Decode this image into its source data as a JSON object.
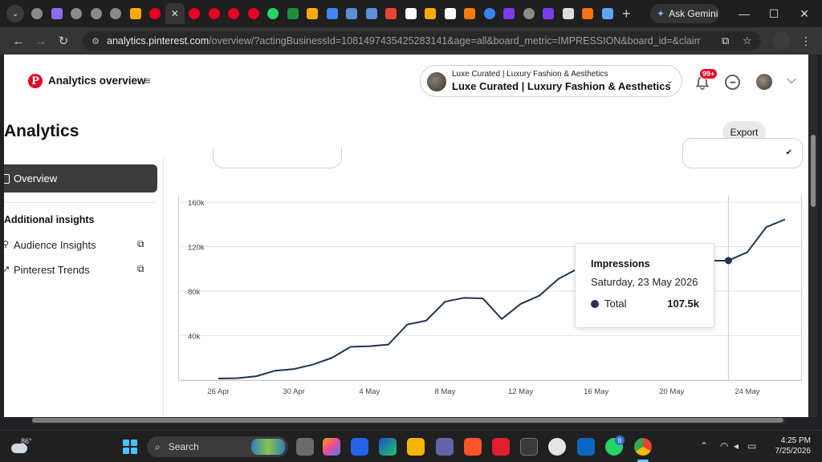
{
  "browser": {
    "gemini_label": "Ask Gemini",
    "new_tab_symbol": "+",
    "close_tab_symbol": "✕",
    "url_host": "analytics.pinterest.com",
    "url_path": "/overview/?actingBusinessId=1081497435425283141&age=all&board_metric=IMPRESSION&board_id=&claimed_account_type...",
    "tabs": [
      {
        "icon": "globe-icon",
        "color": "#8a8a8a"
      },
      {
        "icon": "chart-icon",
        "color": "#8e6cf0"
      },
      {
        "icon": "globe-icon",
        "color": "#8a8a8a"
      },
      {
        "icon": "globe-icon",
        "color": "#8a8a8a"
      },
      {
        "icon": "globe-icon",
        "color": "#8a8a8a"
      },
      {
        "icon": "analytics-icon",
        "color": "#f9ab00"
      },
      {
        "icon": "pinterest-icon",
        "color": "#e60023"
      },
      {
        "icon": "close-icon",
        "color": "#353535",
        "active": true
      },
      {
        "icon": "pinterest-icon",
        "color": "#e60023"
      },
      {
        "icon": "pinterest-icon",
        "color": "#e60023"
      },
      {
        "icon": "pinterest-icon",
        "color": "#e60023"
      },
      {
        "icon": "pinterest-icon",
        "color": "#e60023"
      },
      {
        "icon": "whatsapp-icon",
        "color": "#25d366"
      },
      {
        "icon": "sheets-icon",
        "color": "#1e8e3e"
      },
      {
        "icon": "analytics-icon",
        "color": "#f9ab00"
      },
      {
        "icon": "ads-icon",
        "color": "#4285f4"
      },
      {
        "icon": "bank-icon",
        "color": "#5b8fd6"
      },
      {
        "icon": "bank-icon",
        "color": "#5b8fd6"
      },
      {
        "icon": "gmail-icon",
        "color": "#ea4335"
      },
      {
        "icon": "t-icon",
        "color": "#ffffff"
      },
      {
        "icon": "analytics-icon",
        "color": "#f9ab00"
      },
      {
        "icon": "amazon-icon",
        "color": "#ffffff"
      },
      {
        "icon": "mail-icon",
        "color": "#ff7a00"
      },
      {
        "icon": "c-icon",
        "color": "#3b82f6"
      },
      {
        "icon": "h-icon",
        "color": "#7c3aed"
      },
      {
        "icon": "globe-icon",
        "color": "#8a8a8a"
      },
      {
        "icon": "h-icon",
        "color": "#7c3aed"
      },
      {
        "icon": "io-icon",
        "color": "#dddddd"
      },
      {
        "icon": "wave-icon",
        "color": "#f97316"
      },
      {
        "icon": "sparkle-icon",
        "color": "#60a5fa"
      }
    ]
  },
  "header": {
    "title": "Analytics overview",
    "account_small": "Luxe Curated | Luxury Fashion & Aesthetics",
    "account_name": "Luxe Curated | Luxury Fashion & Aesthetics",
    "notifications_badge": "99+"
  },
  "page": {
    "title": "Analytics",
    "export_label": "Export"
  },
  "sidebar": {
    "overview_label": "Overview",
    "section_title": "Additional insights",
    "links": [
      {
        "label": "Audience Insights"
      },
      {
        "label": "Pinterest Trends"
      }
    ]
  },
  "chart_data": {
    "type": "line",
    "y_ticks": [
      "160k",
      "120k",
      "80k",
      "40k"
    ],
    "ylim": [
      0,
      160000
    ],
    "x_tick_labels": [
      "26 Apr",
      "30 Apr",
      "4 May",
      "8 May",
      "12 May",
      "16 May",
      "20 May",
      "24 May"
    ],
    "x": [
      "26 Apr",
      "27 Apr",
      "28 Apr",
      "29 Apr",
      "30 Apr",
      "1 May",
      "2 May",
      "3 May",
      "4 May",
      "5 May",
      "6 May",
      "7 May",
      "8 May",
      "9 May",
      "10 May",
      "11 May",
      "12 May",
      "13 May",
      "14 May",
      "15 May",
      "16 May",
      "17 May",
      "18 May",
      "19 May",
      "20 May",
      "21 May",
      "22 May",
      "23 May",
      "24 May",
      "25 May",
      "26 May"
    ],
    "series": [
      {
        "name": "Total",
        "color": "#1e3553",
        "values": [
          1500,
          1800,
          3500,
          8500,
          10000,
          14000,
          20000,
          30000,
          30500,
          32000,
          50000,
          53500,
          70500,
          74000,
          73500,
          55000,
          68500,
          76000,
          91000,
          100000,
          104000,
          105000,
          106000,
          106500,
          106800,
          107000,
          107200,
          107500,
          115000,
          137500,
          144500
        ]
      }
    ],
    "highlight_index": 27,
    "tooltip": {
      "title": "Impressions",
      "date": "Saturday, 23 May 2026",
      "series_label": "Total",
      "value": "107.5k"
    }
  },
  "taskbar": {
    "temperature": "86°",
    "search_placeholder": "Search",
    "whatsapp_badge": "8",
    "time": "4:25 PM",
    "date": "7/25/2026"
  }
}
